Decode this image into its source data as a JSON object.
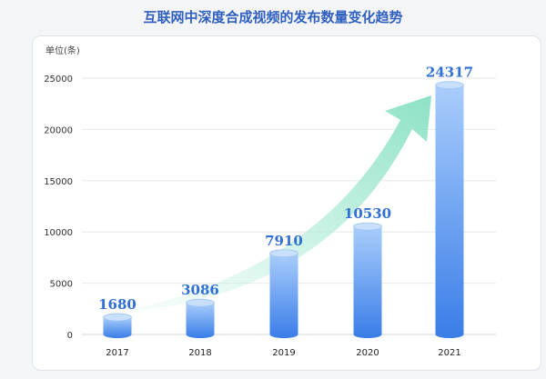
{
  "chart_data": {
    "type": "bar",
    "title": "互联网中深度合成视频的发布数量变化趋势",
    "ylabel": "单位(条)",
    "xlabel": "",
    "categories": [
      "2017",
      "2018",
      "2019",
      "2020",
      "2021"
    ],
    "values": [
      1680,
      3086,
      7910,
      10530,
      24317
    ],
    "value_labels": [
      "1680",
      "3086",
      "7910",
      "10530",
      "24317"
    ],
    "y_ticks": [
      "0",
      "5000",
      "10000",
      "15000",
      "20000",
      "25000"
    ],
    "ylim": [
      0,
      25000
    ],
    "grid": true,
    "colors": {
      "bar_top": "#a9cdfb",
      "bar_bottom": "#3a7de8",
      "label": "#2f6fd6",
      "arrow": "#8fe3c8"
    }
  }
}
